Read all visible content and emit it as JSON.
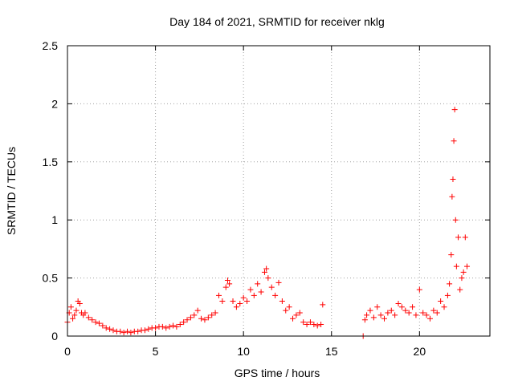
{
  "chart_data": {
    "type": "scatter",
    "title": "Day 184 of 2021, SRMTID for receiver nklg",
    "xlabel": "GPS time / hours",
    "ylabel": "SRMTID / TECUs",
    "xlim": [
      0,
      24
    ],
    "ylim": [
      0,
      2.5
    ],
    "xticks": [
      0,
      5,
      10,
      15,
      20
    ],
    "yticks": [
      0,
      0.5,
      1,
      1.5,
      2,
      2.5
    ],
    "xtick_labels": [
      "0",
      "5",
      "10",
      "15",
      "20"
    ],
    "ytick_labels": [
      "0",
      "0.5",
      "1",
      "1.5",
      "2",
      "2.5"
    ],
    "grid": true,
    "marker": "+",
    "color": "#ff0000",
    "series": [
      {
        "name": "SRMTID",
        "x": [
          0.0,
          0.1,
          0.2,
          0.3,
          0.4,
          0.5,
          0.6,
          0.7,
          0.8,
          0.9,
          1.0,
          1.2,
          1.4,
          1.6,
          1.8,
          2.0,
          2.2,
          2.4,
          2.6,
          2.8,
          3.0,
          3.2,
          3.4,
          3.6,
          3.8,
          4.0,
          4.2,
          4.4,
          4.6,
          4.8,
          5.0,
          5.2,
          5.4,
          5.6,
          5.8,
          6.0,
          6.2,
          6.4,
          6.6,
          6.8,
          7.0,
          7.2,
          7.4,
          7.6,
          7.8,
          8.0,
          8.2,
          8.4,
          8.6,
          8.8,
          9.0,
          9.1,
          9.2,
          9.4,
          9.6,
          9.8,
          10.0,
          10.2,
          10.4,
          10.6,
          10.8,
          11.0,
          11.2,
          11.3,
          11.4,
          11.6,
          11.8,
          12.0,
          12.2,
          12.4,
          12.6,
          12.8,
          13.0,
          13.2,
          13.4,
          13.6,
          13.8,
          14.0,
          14.2,
          14.4,
          14.5,
          16.8,
          16.9,
          17.0,
          17.2,
          17.4,
          17.6,
          17.8,
          18.0,
          18.2,
          18.4,
          18.6,
          18.8,
          19.0,
          19.2,
          19.4,
          19.6,
          19.8,
          20.0,
          20.2,
          20.4,
          20.6,
          20.8,
          21.0,
          21.2,
          21.4,
          21.6,
          21.7,
          21.8,
          21.85,
          21.9,
          21.95,
          22.0,
          22.05,
          22.1,
          22.2,
          22.3,
          22.4,
          22.5,
          22.6,
          22.7
        ],
        "y": [
          0.12,
          0.2,
          0.25,
          0.15,
          0.18,
          0.22,
          0.3,
          0.28,
          0.2,
          0.18,
          0.2,
          0.16,
          0.14,
          0.12,
          0.11,
          0.09,
          0.07,
          0.06,
          0.05,
          0.04,
          0.04,
          0.03,
          0.04,
          0.03,
          0.04,
          0.04,
          0.05,
          0.05,
          0.06,
          0.07,
          0.07,
          0.08,
          0.08,
          0.07,
          0.08,
          0.09,
          0.08,
          0.1,
          0.12,
          0.14,
          0.16,
          0.18,
          0.22,
          0.15,
          0.14,
          0.16,
          0.18,
          0.2,
          0.35,
          0.3,
          0.42,
          0.48,
          0.45,
          0.3,
          0.25,
          0.28,
          0.33,
          0.3,
          0.4,
          0.35,
          0.45,
          0.38,
          0.55,
          0.58,
          0.5,
          0.42,
          0.35,
          0.46,
          0.3,
          0.22,
          0.25,
          0.15,
          0.18,
          0.2,
          0.12,
          0.1,
          0.12,
          0.1,
          0.09,
          0.1,
          0.27,
          0.0,
          0.14,
          0.18,
          0.22,
          0.16,
          0.25,
          0.18,
          0.15,
          0.2,
          0.22,
          0.18,
          0.28,
          0.25,
          0.22,
          0.2,
          0.25,
          0.18,
          0.4,
          0.2,
          0.18,
          0.15,
          0.22,
          0.2,
          0.3,
          0.25,
          0.35,
          0.45,
          0.7,
          1.2,
          1.35,
          1.68,
          1.95,
          1.0,
          0.6,
          0.85,
          0.4,
          0.5,
          0.55,
          0.85,
          0.6
        ]
      }
    ]
  }
}
